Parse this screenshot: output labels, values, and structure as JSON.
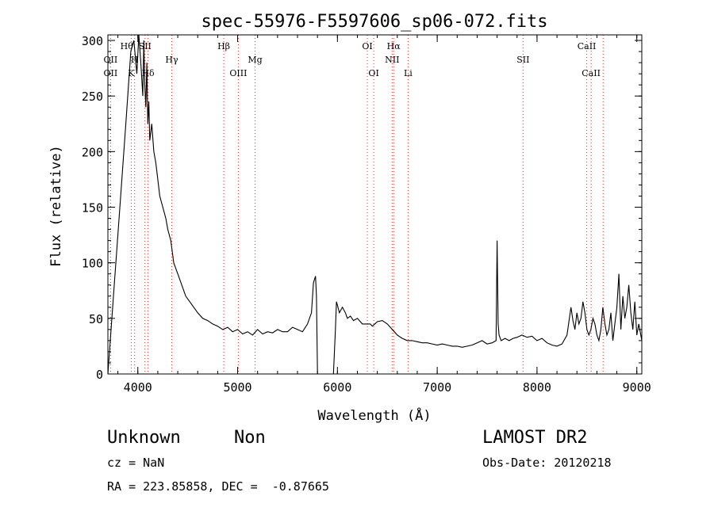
{
  "chart_data": {
    "type": "line",
    "title": "spec-55976-F5597606_sp06-072.fits",
    "xlabel": "Wavelength (Å)",
    "ylabel": "Flux (relative)",
    "xlim": [
      3700,
      9050
    ],
    "ylim": [
      0,
      305
    ],
    "xticks": [
      4000,
      5000,
      6000,
      7000,
      8000,
      9000
    ],
    "yticks": [
      0,
      50,
      100,
      150,
      200,
      250,
      300
    ],
    "grid": false,
    "series": [
      {
        "x": [
          3700,
          3760,
          3820,
          3880,
          3930,
          3960,
          3990,
          4010,
          4030,
          4050,
          4060,
          4070,
          4080,
          4090,
          4100,
          4110,
          4120,
          4140,
          4160,
          4180,
          4200,
          4220,
          4250,
          4280,
          4300,
          4330,
          4360,
          4400,
          4440,
          4480,
          4520,
          4560,
          4600,
          4650,
          4700,
          4750,
          4800,
          4850,
          4900,
          4950,
          5000,
          5050,
          5100,
          5150,
          5200,
          5250,
          5300,
          5350,
          5400,
          5450,
          5500,
          5550,
          5600,
          5650,
          5700,
          5740,
          5760,
          5780,
          5790,
          5800,
          5810,
          5830,
          5900,
          5960,
          5980,
          5990,
          6000,
          6020,
          6050,
          6080,
          6100,
          6130,
          6160,
          6200,
          6250,
          6300,
          6330,
          6350,
          6400,
          6450,
          6500,
          6550,
          6600,
          6650,
          6700,
          6750,
          6800,
          6850,
          6900,
          6950,
          7000,
          7050,
          7100,
          7150,
          7200,
          7250,
          7300,
          7350,
          7400,
          7450,
          7500,
          7550,
          7590,
          7600,
          7610,
          7620,
          7640,
          7680,
          7720,
          7760,
          7800,
          7850,
          7900,
          7950,
          8000,
          8050,
          8100,
          8150,
          8200,
          8250,
          8300,
          8340,
          8360,
          8380,
          8400,
          8420,
          8440,
          8460,
          8480,
          8500,
          8520,
          8540,
          8560,
          8580,
          8600,
          8620,
          8640,
          8660,
          8680,
          8700,
          8720,
          8740,
          8760,
          8780,
          8800,
          8820,
          8840,
          8860,
          8880,
          8900,
          8920,
          8940,
          8960,
          8980,
          9000,
          9020,
          9050
        ],
        "y": [
          0,
          75,
          150,
          225,
          290,
          300,
          270,
          305,
          280,
          250,
          300,
          260,
          240,
          280,
          225,
          245,
          210,
          225,
          200,
          190,
          175,
          160,
          150,
          140,
          130,
          120,
          100,
          90,
          80,
          70,
          65,
          60,
          55,
          50,
          48,
          45,
          43,
          40,
          42,
          38,
          40,
          36,
          38,
          35,
          40,
          36,
          38,
          37,
          40,
          38,
          38,
          42,
          40,
          38,
          45,
          55,
          82,
          88,
          70,
          0,
          0,
          0,
          0,
          0,
          40,
          65,
          62,
          55,
          60,
          55,
          50,
          52,
          48,
          50,
          45,
          45,
          45,
          43,
          47,
          48,
          45,
          40,
          35,
          32,
          30,
          30,
          29,
          28,
          28,
          27,
          26,
          27,
          26,
          25,
          25,
          24,
          25,
          26,
          28,
          30,
          27,
          28,
          30,
          120,
          45,
          35,
          30,
          32,
          30,
          32,
          33,
          35,
          33,
          34,
          30,
          32,
          28,
          26,
          25,
          27,
          35,
          60,
          48,
          40,
          55,
          45,
          50,
          65,
          55,
          40,
          35,
          40,
          50,
          45,
          35,
          30,
          40,
          60,
          45,
          35,
          40,
          55,
          30,
          45,
          60,
          90,
          40,
          70,
          50,
          60,
          80,
          55,
          40,
          65,
          35,
          45,
          30
        ]
      }
    ],
    "lines_blue": [
      {
        "x": 3727,
        "label_top": "OII",
        "label_bot": "OII"
      },
      {
        "x": 3889,
        "label_top": "Hθ",
        "label_bot": ""
      },
      {
        "x": 3934,
        "label_top": "",
        "label_bot": "K"
      },
      {
        "x": 3968,
        "label_top": "H",
        "label_bot": ""
      },
      {
        "x": 4072,
        "label_top": "SII",
        "label_bot": ""
      },
      {
        "x": 4102,
        "label_top": "Hδ",
        "label_bot": ""
      },
      {
        "x": 4340,
        "label_top": "Hγ",
        "label_bot": ""
      },
      {
        "x": 4861,
        "label_top": "Hβ",
        "label_bot": ""
      },
      {
        "x": 5007,
        "label_top": "",
        "label_bot": "OIII"
      },
      {
        "x": 5175,
        "label_top": "Mg",
        "label_bot": ""
      },
      {
        "x": 6300,
        "label_top": "OI",
        "label_bot": ""
      },
      {
        "x": 6364,
        "label_top": "",
        "label_bot": "OI"
      },
      {
        "x": 6548,
        "label_top": "NII",
        "label_bot": ""
      },
      {
        "x": 6563,
        "label_top": "Hα",
        "label_bot": ""
      },
      {
        "x": 6708,
        "label_top": "",
        "label_bot": "Li"
      },
      {
        "x": 7860,
        "label_top": "SII",
        "label_bot": ""
      },
      {
        "x": 8498,
        "label_top": "CaII",
        "label_bot": ""
      },
      {
        "x": 8542,
        "label_top": "",
        "label_bot": "CaII"
      }
    ],
    "marker_lines": [
      3727,
      3934,
      3968,
      4072,
      4102,
      4340,
      4861,
      5007,
      5175,
      6300,
      6364,
      6548,
      6563,
      6708,
      7860,
      8498,
      8542,
      8662
    ],
    "labels_top": [
      {
        "text": "Hθ",
        "x": 3889,
        "row": 1
      },
      {
        "text": "SII",
        "x": 4072,
        "row": 1
      },
      {
        "text": "Hβ",
        "x": 4861,
        "row": 1
      },
      {
        "text": "OI",
        "x": 6300,
        "row": 1
      },
      {
        "text": "Hα",
        "x": 6563,
        "row": 1
      },
      {
        "text": "CaII",
        "x": 8498,
        "row": 1
      },
      {
        "text": "OII",
        "x": 3727,
        "row": 2
      },
      {
        "text": "H",
        "x": 3968,
        "row": 2
      },
      {
        "text": "Hγ",
        "x": 4340,
        "row": 2
      },
      {
        "text": "Mg",
        "x": 5175,
        "row": 2
      },
      {
        "text": "NII",
        "x": 6548,
        "row": 2
      },
      {
        "text": "SII",
        "x": 7860,
        "row": 2
      },
      {
        "text": "OII",
        "x": 3727,
        "row": 3
      },
      {
        "text": "K",
        "x": 3934,
        "row": 3
      },
      {
        "text": "Hδ",
        "x": 4102,
        "row": 3
      },
      {
        "text": "OIII",
        "x": 5007,
        "row": 3
      },
      {
        "text": "OI",
        "x": 6364,
        "row": 3
      },
      {
        "text": "Li",
        "x": 6708,
        "row": 3
      },
      {
        "text": "CaII",
        "x": 8542,
        "row": 3
      }
    ]
  },
  "info": {
    "class": "Unknown",
    "subclass": "Non",
    "survey": "LAMOST DR2",
    "cz": "cz = NaN",
    "obs_date": "Obs-Date: 20120218",
    "radec": "RA = 223.85858, DEC =  -0.87665"
  }
}
